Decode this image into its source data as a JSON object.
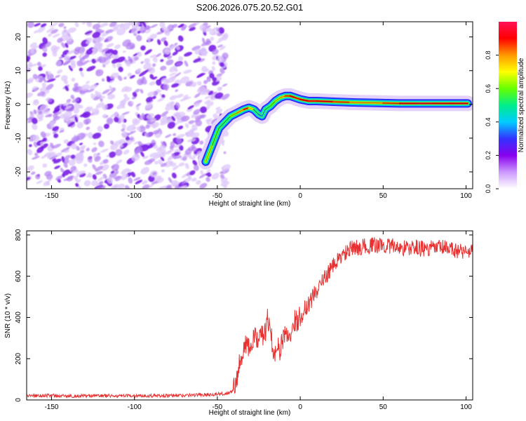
{
  "figure_title": "S206.2026.075.20.52.G01",
  "chart_data": [
    {
      "type": "heatmap",
      "name": "spectrogram",
      "title": "S206.2026.075.20.52.G01",
      "xlabel": "Height of straight line (km)",
      "ylabel": "Frequency (Hz)",
      "xlim": [
        -165,
        104
      ],
      "ylim": [
        -25,
        24.5
      ],
      "xticks": [
        -150,
        -100,
        -50,
        0,
        50,
        100
      ],
      "xtick_labels": [
        "-150",
        "-100",
        "-50",
        "0",
        "50",
        "100"
      ],
      "yticks": [
        -20,
        -10,
        0,
        10,
        20
      ],
      "ytick_labels": [
        "-20",
        "-10",
        "0",
        "10",
        "20"
      ],
      "noise_region_x": [
        -165,
        -47
      ],
      "ridge": {
        "x": [
          -57,
          -53,
          -49,
          -46,
          -42,
          -38,
          -34,
          -31,
          -28,
          -25,
          -23,
          -21,
          -18,
          -15,
          -12,
          -9,
          -6,
          -3,
          0,
          5,
          10,
          20,
          30,
          40,
          50,
          60,
          70,
          80,
          90,
          101
        ],
        "y": [
          -17,
          -12,
          -7,
          -5.5,
          -3.5,
          -2.5,
          -1.5,
          -1,
          -1.5,
          -3,
          -3.5,
          -1.5,
          -0.5,
          1,
          2,
          2.5,
          2.5,
          2,
          1.5,
          1,
          1,
          0.8,
          0.6,
          0.5,
          0.4,
          0.3,
          0.3,
          0.3,
          0.3,
          0.3
        ],
        "amplitude": [
          0.7,
          0.6,
          0.5,
          0.45,
          0.55,
          0.7,
          0.85,
          0.9,
          0.5,
          0.4,
          0.35,
          0.45,
          0.55,
          0.6,
          0.7,
          0.8,
          0.9,
          0.9,
          0.85,
          0.95,
          0.95,
          0.9,
          0.8,
          0.75,
          0.8,
          0.9,
          0.95,
          0.95,
          0.9,
          0.95
        ]
      },
      "colorbar": {
        "label": "Normalized spectral amplitude",
        "range": [
          0.0,
          1.0
        ],
        "ticks": [
          0.0,
          0.2,
          0.4,
          0.6,
          0.8
        ],
        "tick_labels": [
          "0.0",
          "0.2",
          "0.4",
          "0.6",
          "0.8"
        ],
        "colormap": [
          "#ffffff",
          "#cc99ff",
          "#8800ee",
          "#3333ff",
          "#00ccff",
          "#00ee88",
          "#66ff00",
          "#ffff00",
          "#ff9900",
          "#ff0000",
          "#ff1155"
        ]
      }
    },
    {
      "type": "line",
      "name": "snr",
      "xlabel": "Height of straight line (km)",
      "ylabel": "SNR (10 * v/v)",
      "xlim": [
        -165,
        104
      ],
      "ylim": [
        0,
        820
      ],
      "xticks": [
        -150,
        -100,
        -50,
        0,
        50,
        100
      ],
      "xtick_labels": [
        "-150",
        "-100",
        "-50",
        "0",
        "50",
        "100"
      ],
      "yticks": [
        0,
        200,
        400,
        600,
        800
      ],
      "ytick_labels": [
        "0",
        "200",
        "400",
        "600",
        "800"
      ],
      "line_color": "#e83030",
      "series": [
        {
          "name": "SNR",
          "x": [
            -165,
            -150,
            -140,
            -130,
            -120,
            -110,
            -100,
            -90,
            -80,
            -70,
            -60,
            -50,
            -45,
            -41,
            -38,
            -36,
            -34,
            -32,
            -30,
            -28,
            -26,
            -24,
            -22,
            -20,
            -18,
            -16,
            -14,
            -12,
            -10,
            -8,
            -6,
            -4,
            -2,
            0,
            2,
            4,
            6,
            8,
            10,
            12,
            14,
            16,
            18,
            20,
            22,
            24,
            26,
            28,
            30,
            35,
            40,
            45,
            50,
            55,
            60,
            65,
            70,
            75,
            80,
            85,
            90,
            95,
            100,
            104
          ],
          "y": [
            20,
            22,
            18,
            20,
            21,
            19,
            20,
            21,
            20,
            22,
            25,
            28,
            30,
            45,
            120,
            210,
            250,
            270,
            240,
            300,
            290,
            350,
            280,
            400,
            330,
            230,
            260,
            240,
            310,
            330,
            300,
            390,
            380,
            410,
            430,
            460,
            490,
            510,
            530,
            560,
            580,
            610,
            630,
            650,
            670,
            690,
            705,
            715,
            730,
            740,
            745,
            750,
            750,
            745,
            740,
            735,
            740,
            730,
            735,
            740,
            730,
            725,
            720,
            730
          ]
        }
      ]
    }
  ]
}
